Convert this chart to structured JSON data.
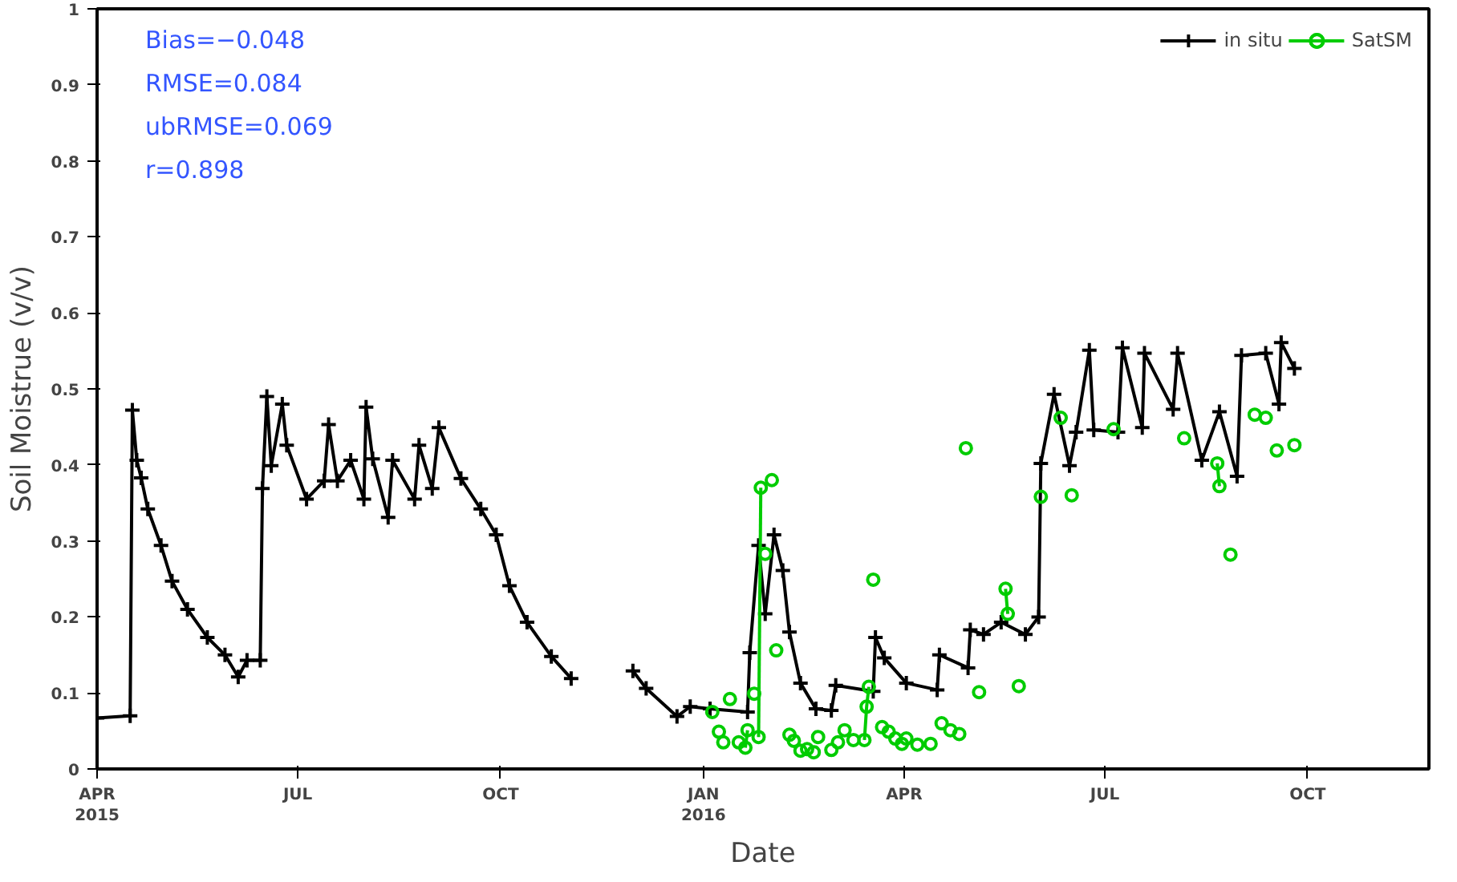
{
  "chart_data": {
    "type": "line",
    "xlabel": "Date",
    "ylabel": "Soil Moistrue (v/v)",
    "annotations": [
      "Bias=−0.048",
      "RMSE=0.084",
      "ubRMSE=0.069",
      "r=0.898"
    ],
    "xlim": [
      "2015-04-01",
      "2016-11-25"
    ],
    "xticks": [
      {
        "value": "2015-04-01",
        "label": "APR\n2015"
      },
      {
        "value": "2015-07-01",
        "label": "JUL"
      },
      {
        "value": "2015-10-01",
        "label": "OCT"
      },
      {
        "value": "2016-01-01",
        "label": "JAN\n2016"
      },
      {
        "value": "2016-04-01",
        "label": "APR"
      },
      {
        "value": "2016-07-01",
        "label": "JUL"
      },
      {
        "value": "2016-10-01",
        "label": "OCT"
      }
    ],
    "ylim": [
      0,
      1
    ],
    "yticks": [
      0,
      0.1,
      0.2,
      0.3,
      0.4,
      0.5,
      0.6,
      0.7,
      0.8,
      0.9,
      1
    ],
    "grid": false,
    "legend": "top right",
    "series": [
      {
        "name": "in situ",
        "color": "#000000",
        "marker": "cross",
        "x": [
          "2015-04-01",
          "2015-04-16",
          "2015-04-17",
          "2015-04-19",
          "2015-04-21",
          "2015-04-24",
          "2015-04-30",
          "2015-05-05",
          "2015-05-12",
          "2015-05-21",
          "2015-05-29",
          "2015-06-04",
          "2015-06-08",
          "2015-06-14",
          "2015-06-15",
          "2015-06-17",
          "2015-06-19",
          "2015-06-24",
          "2015-06-26",
          "2015-07-05",
          "2015-07-13",
          "2015-07-15",
          "2015-07-19",
          "2015-07-25",
          "2015-07-31",
          "2015-08-01",
          "2015-08-04",
          "2015-08-11",
          "2015-08-13",
          "2015-08-23",
          "2015-08-25",
          "2015-08-31",
          "2015-09-03",
          "2015-09-13",
          "2015-09-22",
          "2015-09-29",
          "2015-10-05",
          "2015-10-13",
          "2015-10-24",
          "2015-11-02",
          "2015-11-15",
          "2015-11-30",
          "2015-12-06",
          "2015-12-20",
          "2015-12-26",
          "2016-01-04",
          "2016-01-21",
          "2016-01-22",
          "2016-01-26",
          "2016-01-29",
          "2016-02-02",
          "2016-02-06",
          "2016-02-09",
          "2016-02-14",
          "2016-02-21",
          "2016-02-28",
          "2016-03-01",
          "2016-03-18",
          "2016-03-19",
          "2016-03-23",
          "2016-04-02",
          "2016-04-16",
          "2016-04-17",
          "2016-04-30",
          "2016-05-01",
          "2016-05-07",
          "2016-05-15",
          "2016-05-26",
          "2016-06-01",
          "2016-06-02",
          "2016-06-08",
          "2016-06-15",
          "2016-06-18",
          "2016-06-24",
          "2016-06-26",
          "2016-07-07",
          "2016-07-09",
          "2016-07-18",
          "2016-07-19",
          "2016-08-01",
          "2016-08-03",
          "2016-08-14",
          "2016-08-22",
          "2016-08-30",
          "2016-09-01",
          "2016-09-12",
          "2016-09-18",
          "2016-09-19",
          "2016-09-25"
        ],
        "values": [
          0.067,
          0.07,
          0.472,
          0.406,
          0.383,
          0.342,
          0.294,
          0.247,
          0.21,
          0.173,
          0.15,
          0.121,
          0.143,
          0.143,
          0.369,
          0.49,
          0.399,
          0.48,
          0.426,
          0.355,
          0.379,
          0.453,
          0.379,
          0.406,
          0.355,
          0.476,
          0.408,
          0.331,
          0.406,
          0.355,
          0.426,
          0.369,
          0.449,
          0.382,
          0.342,
          0.308,
          0.241,
          0.193,
          0.148,
          0.119,
          null,
          0.129,
          0.106,
          0.069,
          0.082,
          0.079,
          0.075,
          0.153,
          0.294,
          0.204,
          0.308,
          0.261,
          0.18,
          0.113,
          0.079,
          0.077,
          0.11,
          0.102,
          0.173,
          0.146,
          0.113,
          0.104,
          0.15,
          0.133,
          0.183,
          0.177,
          0.193,
          0.177,
          0.2,
          0.402,
          0.493,
          0.399,
          0.443,
          0.551,
          0.446,
          0.443,
          0.554,
          0.449,
          0.547,
          0.473,
          0.547,
          0.406,
          0.47,
          0.385,
          0.544,
          0.547,
          0.48,
          0.561,
          0.527
        ]
      },
      {
        "name": "SatSM",
        "type": "scatter",
        "color": "#00cc00",
        "marker": "circle",
        "x": [
          "2016-01-05",
          "2016-01-08",
          "2016-01-10",
          "2016-01-13",
          "2016-01-17",
          "2016-01-24",
          "2016-01-29",
          "2016-02-01",
          "2016-02-03",
          "2016-02-09",
          "2016-02-11",
          "2016-02-14",
          "2016-02-17",
          "2016-02-20",
          "2016-02-22",
          "2016-02-28",
          "2016-03-02",
          "2016-03-05",
          "2016-03-09",
          "2016-03-18",
          "2016-03-22",
          "2016-03-25",
          "2016-03-28",
          "2016-03-31",
          "2016-04-02",
          "2016-04-07",
          "2016-04-13",
          "2016-04-18",
          "2016-04-22",
          "2016-04-26",
          "2016-04-29",
          "2016-05-05",
          "2016-05-23",
          "2016-06-02",
          "2016-06-11",
          "2016-06-16",
          "2016-07-05",
          "2016-08-06",
          "2016-08-27",
          "2016-09-07",
          "2016-09-12",
          "2016-09-17",
          "2016-09-25"
        ],
        "values": [
          0.075,
          0.049,
          0.035,
          0.092,
          0.035,
          0.099,
          0.283,
          0.38,
          0.156,
          0.045,
          0.037,
          0.024,
          0.026,
          0.022,
          0.042,
          0.025,
          0.035,
          0.051,
          0.038,
          0.249,
          0.055,
          0.049,
          0.04,
          0.033,
          0.04,
          0.032,
          0.033,
          0.06,
          0.051,
          0.046,
          0.422,
          0.101,
          0.109,
          0.358,
          0.462,
          0.36,
          0.447,
          0.435,
          0.282,
          0.466,
          0.462,
          0.419,
          0.426
        ]
      },
      {
        "type": "line",
        "color": "#00cc00",
        "marker": "circle",
        "x": [
          "2016-01-20",
          "2016-01-21"
        ],
        "values": [
          0.028,
          0.051
        ]
      },
      {
        "type": "line",
        "color": "#00cc00",
        "marker": "circle",
        "x": [
          "2016-01-26",
          "2016-01-27"
        ],
        "values": [
          0.042,
          0.37
        ]
      },
      {
        "type": "line",
        "color": "#00cc00",
        "marker": "circle",
        "x": [
          "2016-03-14",
          "2016-03-15",
          "2016-03-16"
        ],
        "values": [
          0.038,
          0.082,
          0.108
        ]
      },
      {
        "type": "line",
        "color": "#00cc00",
        "marker": "circle",
        "x": [
          "2016-05-17",
          "2016-05-18"
        ],
        "values": [
          0.237,
          0.204
        ]
      },
      {
        "type": "line",
        "color": "#00cc00",
        "marker": "circle",
        "x": [
          "2016-08-21",
          "2016-08-22"
        ],
        "values": [
          0.402,
          0.372
        ]
      }
    ]
  }
}
